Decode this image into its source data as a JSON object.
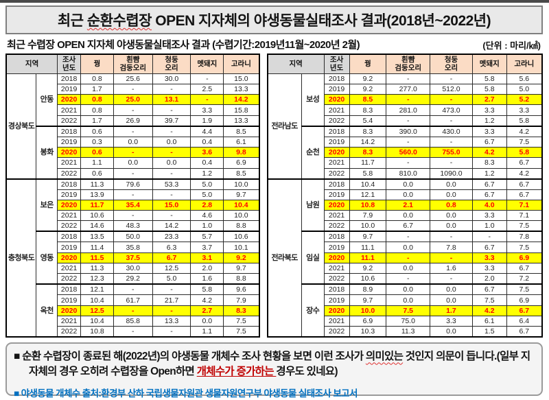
{
  "title": {
    "prefix": "최근 ",
    "underlined": "순환수렵장",
    "suffix": " OPEN 지자체의 야생동물실태조사 결과(2018년~2022년)"
  },
  "subtitle": "최근 수렵장 OPEN 지자체 야생동물실태조사 결과 (수렵기간:2019년11월~2020년 2월)",
  "unit_label": "(단위 : 마리/㎢)",
  "colors": {
    "highlight_bg": "#ffff00",
    "highlight_text": "#ff0000",
    "header_gray": "#d9d9d9",
    "header_peach": "#fbdcc5",
    "note_red": "#c00000",
    "source_blue": "#0070c0"
  },
  "table_columns": [
    {
      "id": "region",
      "label": "지역",
      "style": "gray"
    },
    {
      "id": "survey-year",
      "label": "조사\n년도",
      "style": "gray"
    },
    {
      "id": "pheasant",
      "label": "꿩",
      "style": "peach"
    },
    {
      "id": "spot-billed-duck",
      "label": "흰뺨\n검둥오리",
      "style": "peach"
    },
    {
      "id": "mallard",
      "label": "청둥\n오리",
      "style": "peach"
    },
    {
      "id": "wild-boar",
      "label": "멧돼지",
      "style": "peach"
    },
    {
      "id": "water-deer",
      "label": "고라니",
      "style": "peach"
    }
  ],
  "tables": [
    {
      "name": "wildlife-table-left",
      "provinces": [
        {
          "name": "경상북도",
          "cities": [
            {
              "name": "안동",
              "rows": [
                {
                  "year": "2018",
                  "values": [
                    "0.8",
                    "25.6",
                    "30.0",
                    "-",
                    "15.0"
                  ],
                  "highlight": false
                },
                {
                  "year": "2019",
                  "values": [
                    "1.7",
                    "-",
                    "-",
                    "2.5",
                    "13.3"
                  ],
                  "highlight": false
                },
                {
                  "year": "2020",
                  "values": [
                    "0.8",
                    "25.0",
                    "13.1",
                    "-",
                    "14.2"
                  ],
                  "highlight": true
                },
                {
                  "year": "2021",
                  "values": [
                    "0.8",
                    "-",
                    "-",
                    "3.3",
                    "15.8"
                  ],
                  "highlight": false
                },
                {
                  "year": "2022",
                  "values": [
                    "1.7",
                    "26.9",
                    "39.7",
                    "1.9",
                    "13.3"
                  ],
                  "highlight": false
                }
              ]
            },
            {
              "name": "봉화",
              "rows": [
                {
                  "year": "2018",
                  "values": [
                    "0.6",
                    "-",
                    "-",
                    "4.4",
                    "8.5"
                  ],
                  "highlight": false
                },
                {
                  "year": "2019",
                  "values": [
                    "0.3",
                    "0.0",
                    "0.0",
                    "0.4",
                    "6.1"
                  ],
                  "highlight": false
                },
                {
                  "year": "2020",
                  "values": [
                    "0.6",
                    "-",
                    "-",
                    "3.6",
                    "9.8"
                  ],
                  "highlight": true
                },
                {
                  "year": "2021",
                  "values": [
                    "1.1",
                    "0.0",
                    "0.0",
                    "0.4",
                    "6.9"
                  ],
                  "highlight": false
                },
                {
                  "year": "2022",
                  "values": [
                    "0.6",
                    "-",
                    "-",
                    "1.2",
                    "8.5"
                  ],
                  "highlight": false
                }
              ]
            }
          ]
        },
        {
          "name": "충청북도",
          "cities": [
            {
              "name": "보은",
              "rows": [
                {
                  "year": "2018",
                  "values": [
                    "11.3",
                    "79.6",
                    "53.3",
                    "5.0",
                    "10.0"
                  ],
                  "highlight": false
                },
                {
                  "year": "2019",
                  "values": [
                    "13.9",
                    "-",
                    "-",
                    "5.0",
                    "9.7"
                  ],
                  "highlight": false
                },
                {
                  "year": "2020",
                  "values": [
                    "11.7",
                    "35.4",
                    "15.0",
                    "2.8",
                    "10.4"
                  ],
                  "highlight": true
                },
                {
                  "year": "2021",
                  "values": [
                    "10.6",
                    "-",
                    "-",
                    "4.6",
                    "10.0"
                  ],
                  "highlight": false
                },
                {
                  "year": "2022",
                  "values": [
                    "14.6",
                    "48.3",
                    "14.2",
                    "1.0",
                    "8.8"
                  ],
                  "highlight": false
                }
              ]
            },
            {
              "name": "영동",
              "rows": [
                {
                  "year": "2018",
                  "values": [
                    "13.5",
                    "50.0",
                    "23.3",
                    "5.7",
                    "10.6"
                  ],
                  "highlight": false
                },
                {
                  "year": "2019",
                  "values": [
                    "11.4",
                    "35.8",
                    "6.3",
                    "3.7",
                    "10.1"
                  ],
                  "highlight": false
                },
                {
                  "year": "2020",
                  "values": [
                    "11.5",
                    "37.5",
                    "6.7",
                    "3.1",
                    "9.2"
                  ],
                  "highlight": true
                },
                {
                  "year": "2021",
                  "values": [
                    "11.3",
                    "30.0",
                    "12.5",
                    "2.0",
                    "9.7"
                  ],
                  "highlight": false
                },
                {
                  "year": "2022",
                  "values": [
                    "12.3",
                    "29.2",
                    "5.0",
                    "1.6",
                    "8.8"
                  ],
                  "highlight": false
                }
              ]
            },
            {
              "name": "옥천",
              "rows": [
                {
                  "year": "2018",
                  "values": [
                    "12.1",
                    "-",
                    "-",
                    "5.8",
                    "9.6"
                  ],
                  "highlight": false
                },
                {
                  "year": "2019",
                  "values": [
                    "10.4",
                    "61.7",
                    "21.7",
                    "4.2",
                    "7.9"
                  ],
                  "highlight": false
                },
                {
                  "year": "2020",
                  "values": [
                    "12.5",
                    "-",
                    "-",
                    "2.7",
                    "8.3"
                  ],
                  "highlight": true
                },
                {
                  "year": "2021",
                  "values": [
                    "10.4",
                    "85.8",
                    "13.3",
                    "0.0",
                    "7.5"
                  ],
                  "highlight": false
                },
                {
                  "year": "2022",
                  "values": [
                    "10.8",
                    "-",
                    "-",
                    "1.1",
                    "7.5"
                  ],
                  "highlight": false
                }
              ]
            }
          ]
        }
      ]
    },
    {
      "name": "wildlife-table-right",
      "provinces": [
        {
          "name": "전라남도",
          "cities": [
            {
              "name": "보성",
              "rows": [
                {
                  "year": "2018",
                  "values": [
                    "9.2",
                    "-",
                    "-",
                    "5.8",
                    "5.6"
                  ],
                  "highlight": false
                },
                {
                  "year": "2019",
                  "values": [
                    "9.2",
                    "277.0",
                    "512.0",
                    "5.8",
                    "5.0"
                  ],
                  "highlight": false
                },
                {
                  "year": "2020",
                  "values": [
                    "8.5",
                    "-",
                    "-",
                    "2.7",
                    "5.2"
                  ],
                  "highlight": true
                },
                {
                  "year": "2021",
                  "values": [
                    "8.3",
                    "281.0",
                    "473.0",
                    "3.3",
                    "3.3"
                  ],
                  "highlight": false
                },
                {
                  "year": "2022",
                  "values": [
                    "5.4",
                    "-",
                    "-",
                    "1.2",
                    "5.8"
                  ],
                  "highlight": false
                }
              ]
            },
            {
              "name": "순천",
              "rows": [
                {
                  "year": "2018",
                  "values": [
                    "8.3",
                    "390.0",
                    "430.0",
                    "3.3",
                    "4.2"
                  ],
                  "highlight": false
                },
                {
                  "year": "2019",
                  "values": [
                    "14.2",
                    "-",
                    "-",
                    "6.7",
                    "7.5"
                  ],
                  "highlight": false
                },
                {
                  "year": "2020",
                  "values": [
                    "8.3",
                    "560.0",
                    "755.0",
                    "4.2",
                    "5.8"
                  ],
                  "highlight": true
                },
                {
                  "year": "2021",
                  "values": [
                    "11.7",
                    "-",
                    "-",
                    "8.3",
                    "6.7"
                  ],
                  "highlight": false
                },
                {
                  "year": "2022",
                  "values": [
                    "5.8",
                    "810.0",
                    "1090.0",
                    "1.2",
                    "4.2"
                  ],
                  "highlight": false
                }
              ]
            }
          ]
        },
        {
          "name": "전라북도",
          "cities": [
            {
              "name": "남원",
              "rows": [
                {
                  "year": "2018",
                  "values": [
                    "10.4",
                    "0.0",
                    "0.0",
                    "6.7",
                    "6.7"
                  ],
                  "highlight": false
                },
                {
                  "year": "2019",
                  "values": [
                    "12.1",
                    "0.0",
                    "0.0",
                    "6.7",
                    "6.7"
                  ],
                  "highlight": false
                },
                {
                  "year": "2020",
                  "values": [
                    "10.8",
                    "2.1",
                    "0.8",
                    "4.0",
                    "7.1"
                  ],
                  "highlight": true
                },
                {
                  "year": "2021",
                  "values": [
                    "7.9",
                    "0.0",
                    "0.0",
                    "3.3",
                    "7.1"
                  ],
                  "highlight": false
                },
                {
                  "year": "2022",
                  "values": [
                    "10.0",
                    "6.7",
                    "0.0",
                    "1.0",
                    "7.5"
                  ],
                  "highlight": false
                }
              ]
            },
            {
              "name": "임실",
              "rows": [
                {
                  "year": "2018",
                  "values": [
                    "9.7",
                    "-",
                    "-",
                    "-",
                    "7.8"
                  ],
                  "highlight": false
                },
                {
                  "year": "2019",
                  "values": [
                    "11.1",
                    "0.0",
                    "7.8",
                    "6.7",
                    "7.5"
                  ],
                  "highlight": false
                },
                {
                  "year": "2020",
                  "values": [
                    "11.1",
                    "-",
                    "-",
                    "3.3",
                    "6.9"
                  ],
                  "highlight": true
                },
                {
                  "year": "2021",
                  "values": [
                    "9.2",
                    "0.0",
                    "1.6",
                    "3.3",
                    "6.7"
                  ],
                  "highlight": false
                },
                {
                  "year": "2022",
                  "values": [
                    "10.6",
                    "-",
                    "-",
                    "2.0",
                    "7.2"
                  ],
                  "highlight": false
                }
              ]
            },
            {
              "name": "장수",
              "rows": [
                {
                  "year": "2018",
                  "values": [
                    "8.9",
                    "0.0",
                    "0.0",
                    "6.7",
                    "7.5"
                  ],
                  "highlight": false
                },
                {
                  "year": "2019",
                  "values": [
                    "9.7",
                    "0.0",
                    "0.0",
                    "7.5",
                    "6.9"
                  ],
                  "highlight": false
                },
                {
                  "year": "2020",
                  "values": [
                    "10.0",
                    "7.5",
                    "1.7",
                    "4.2",
                    "6.7"
                  ],
                  "highlight": true
                },
                {
                  "year": "2021",
                  "values": [
                    "6.9",
                    "75.0",
                    "3.3",
                    "6.1",
                    "6.4"
                  ],
                  "highlight": false
                },
                {
                  "year": "2022",
                  "values": [
                    "10.3",
                    "11.3",
                    "0.0",
                    "1.5",
                    "6.7"
                  ],
                  "highlight": false
                }
              ]
            }
          ]
        }
      ]
    }
  ],
  "note": {
    "bullet": "■",
    "seg1": " 순환 수렵장이 종료된 해(2022년)의 야생동물 개체수 조사 현황을 보면 이런 조사가 ",
    "seg2": "의미있는",
    "seg3": " 것인지 의문이 듭니다.(일부 지자체의 경우 오히려 수렵장을 Open하면 ",
    "seg4": "개체수가 증가하는 ",
    "seg5": "경우도 있네요)",
    "source": "■ 야생동물 개체수 출처:환경부 산하 국립생물자원관 생물자원연구부 야생동물 실태조사 보고서"
  }
}
